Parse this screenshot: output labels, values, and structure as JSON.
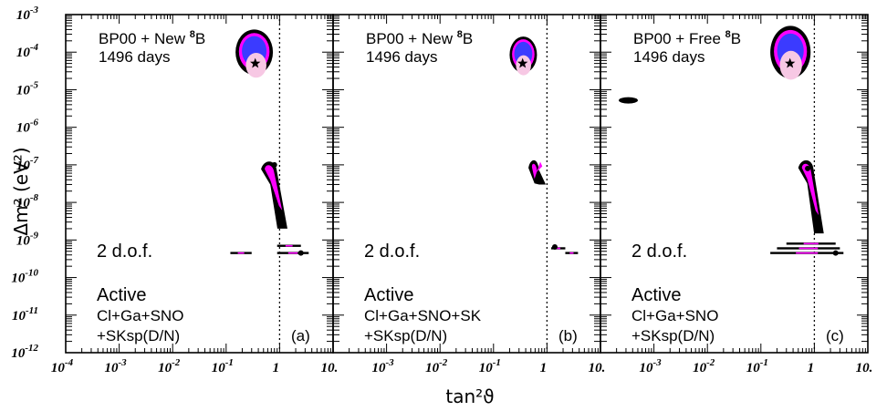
{
  "chart_data": {
    "type": "scatter",
    "x_axis": {
      "label": "tan²ϑ",
      "scale": "log",
      "range": [
        0.0001,
        10
      ],
      "tick_labels": [
        {
          "value": 0.0001,
          "base": "10",
          "exp": "-4"
        },
        {
          "value": 0.001,
          "base": "10",
          "exp": "-3"
        },
        {
          "value": 0.01,
          "base": "10",
          "exp": "-2"
        },
        {
          "value": 0.1,
          "base": "10",
          "exp": "-1"
        },
        {
          "value": 1,
          "base": "1",
          "exp": ""
        },
        {
          "value": 10,
          "base": "10.",
          "exp": ""
        }
      ]
    },
    "y_axis": {
      "label": "Δm² (eV²)",
      "scale": "log",
      "range": [
        1e-12,
        0.001
      ],
      "tick_labels": [
        {
          "value": 0.001,
          "base": "10",
          "exp": "-3"
        },
        {
          "value": 0.0001,
          "base": "10",
          "exp": "-4"
        },
        {
          "value": 1e-05,
          "base": "10",
          "exp": "-5"
        },
        {
          "value": 1e-06,
          "base": "10",
          "exp": "-6"
        },
        {
          "value": 1e-07,
          "base": "10",
          "exp": "-7"
        },
        {
          "value": 1e-08,
          "base": "10",
          "exp": "-8"
        },
        {
          "value": 1e-09,
          "base": "10",
          "exp": "-9"
        },
        {
          "value": 1e-10,
          "base": "10",
          "exp": "-10"
        },
        {
          "value": 1e-11,
          "base": "10",
          "exp": "-11"
        },
        {
          "value": 1e-12,
          "base": "10",
          "exp": "-12"
        }
      ]
    },
    "reference_line": {
      "x": 1,
      "style": "dotted"
    },
    "colors": {
      "black": "#000000",
      "magenta": "#ff00ff",
      "blue": "#3b3bff",
      "pink": "#f7c8e4"
    },
    "panels": [
      {
        "id": "a",
        "header_prefix": "BP00 + New ",
        "header_superscript": "8",
        "header_suffix": "B",
        "days": "1496 days",
        "dof": "2 d.o.f.",
        "mode": "Active",
        "datasets_1": "Cl+Ga+SNO",
        "datasets_2": "+SKsp(D/N)",
        "tag": "(a)",
        "best_fit": {
          "tan2": 0.35,
          "dm2": 5e-05
        },
        "secondary_points": [
          {
            "tan2": 0.8,
            "dm2": 1e-07
          },
          {
            "tan2": 2.5,
            "dm2": 4.5e-10
          }
        ],
        "lma_region": {
          "tan2": [
            0.15,
            0.75
          ],
          "dm2": [
            2.5e-05,
            0.0004
          ]
        },
        "low_region": {
          "tan2": [
            0.45,
            1.4
          ],
          "dm2": [
            2e-09,
            1.2e-07
          ]
        },
        "vo_stripes": [
          {
            "tan2": [
              0.12,
              0.3
            ],
            "dm2": 4.5e-10
          },
          {
            "tan2": [
              0.9,
              3.5
            ],
            "dm2": 4.5e-10
          },
          {
            "tan2": [
              0.9,
              2.5
            ],
            "dm2": 7e-10
          }
        ]
      },
      {
        "id": "b",
        "header_prefix": "BP00 + New ",
        "header_superscript": "8",
        "header_suffix": "B",
        "days": "1496 days",
        "dof": "2 d.o.f.",
        "mode": "Active",
        "datasets_1": "Cl+Ga+SNO+SK",
        "datasets_2": "+SKsp(D/N)",
        "tag": "(b)",
        "best_fit": {
          "tan2": 0.35,
          "dm2": 5e-05
        },
        "secondary_points": [
          {
            "tan2": 1.4,
            "dm2": 6.5e-10
          }
        ],
        "lma_region": {
          "tan2": [
            0.2,
            0.65
          ],
          "dm2": [
            2.8e-05,
            0.00026
          ]
        },
        "low_region": {
          "tan2": [
            0.45,
            0.95
          ],
          "dm2": [
            3e-08,
            1.3e-07
          ]
        },
        "vo_stripes": [
          {
            "tan2": [
              1.2,
              2.2
            ],
            "dm2": 6e-10
          },
          {
            "tan2": [
              2.2,
              3.8
            ],
            "dm2": 4.5e-10
          }
        ]
      },
      {
        "id": "c",
        "header_prefix": "BP00 + Free ",
        "header_superscript": "8",
        "header_suffix": "B",
        "days": "1496 days",
        "dof": "2 d.o.f.",
        "mode": "Active",
        "datasets_1": "Cl+Ga+SNO",
        "datasets_2": "+SKsp(D/N)",
        "tag": "(c)",
        "best_fit": {
          "tan2": 0.35,
          "dm2": 5e-05
        },
        "secondary_points": [
          {
            "tan2": 0.75,
            "dm2": 8e-08
          },
          {
            "tan2": 2.5,
            "dm2": 4.5e-10
          }
        ],
        "lma_region": {
          "tan2": [
            0.15,
            0.85
          ],
          "dm2": [
            2e-05,
            0.0005
          ]
        },
        "low_region": {
          "tan2": [
            0.5,
            1.5
          ],
          "dm2": [
            1.5e-09,
            1.3e-07
          ]
        },
        "smb_island": {
          "tan2": [
            0.00022,
            0.0005
          ],
          "dm2": 5.2e-06
        },
        "vo_stripes": [
          {
            "tan2": [
              0.2,
              3.0
            ],
            "dm2": 6e-10
          },
          {
            "tan2": [
              0.15,
              3.5
            ],
            "dm2": 4.5e-10
          },
          {
            "tan2": [
              0.3,
              2.5
            ],
            "dm2": 8e-10
          }
        ]
      }
    ]
  }
}
